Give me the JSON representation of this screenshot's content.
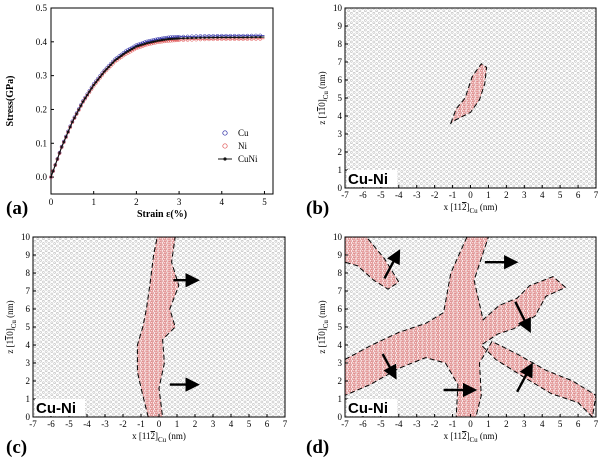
{
  "panels": [
    {
      "id": "a",
      "label": "(a)"
    },
    {
      "id": "b",
      "label": "(b)"
    },
    {
      "id": "c",
      "label": "(c)"
    },
    {
      "id": "d",
      "label": "(d)"
    }
  ],
  "material_label": "Cu-Ni",
  "chart_data": [
    {
      "type": "line",
      "panel": "(a)",
      "title": "",
      "xlabel": "Strain ε(%)",
      "ylabel": "Stress(GPa)",
      "xlim": [
        0,
        5.2
      ],
      "ylim": [
        -0.05,
        0.5
      ],
      "xticks": [
        "0",
        "1",
        "2",
        "3",
        "4",
        "5"
      ],
      "yticks": [
        "0.0",
        "0.1",
        "0.2",
        "0.3",
        "0.4",
        "0.5"
      ],
      "legend_position": "bottom-right",
      "x": [
        0,
        0.25,
        0.5,
        0.75,
        1.0,
        1.25,
        1.5,
        1.75,
        2.0,
        2.25,
        2.5,
        2.75,
        3.0,
        3.5,
        4.0,
        4.5,
        5.0
      ],
      "series": [
        {
          "name": "Cu",
          "marker": "circle",
          "color": "#2020a0",
          "values": [
            0,
            0.09,
            0.165,
            0.225,
            0.275,
            0.315,
            0.348,
            0.372,
            0.39,
            0.401,
            0.408,
            0.413,
            0.415,
            0.417,
            0.418,
            0.418,
            0.419
          ]
        },
        {
          "name": "Ni",
          "marker": "circle",
          "color": "#e05050",
          "values": [
            0,
            0.088,
            0.162,
            0.222,
            0.27,
            0.31,
            0.342,
            0.364,
            0.381,
            0.392,
            0.399,
            0.403,
            0.405,
            0.407,
            0.408,
            0.408,
            0.409
          ]
        },
        {
          "name": "CuNi",
          "marker": "filled-dot",
          "color": "#111111",
          "values": [
            0,
            0.089,
            0.163,
            0.223,
            0.272,
            0.312,
            0.345,
            0.368,
            0.386,
            0.396,
            0.403,
            0.408,
            0.41,
            0.412,
            0.413,
            0.413,
            0.414
          ]
        }
      ]
    },
    {
      "type": "scatter",
      "panel": "(b)",
      "xlabel_main": "x [11",
      "xlabel_bar": "2",
      "xlabel_sub": "Cu",
      "xlabel_unit": "(nm)",
      "ylabel_main": "z [1",
      "ylabel_bar": "1",
      "ylabel_tail": "0]",
      "ylabel_sub": "Cu",
      "ylabel_unit": "(nm)",
      "xlim": [
        -7,
        7
      ],
      "ylim": [
        0,
        10
      ],
      "xticks": [
        "-7",
        "-6",
        "-5",
        "-4",
        "-3",
        "-2",
        "-1",
        "0",
        "1",
        "2",
        "3",
        "4",
        "5",
        "6",
        "7"
      ],
      "yticks": [
        "0",
        "1",
        "2",
        "3",
        "4",
        "5",
        "6",
        "7",
        "8",
        "9",
        "10"
      ],
      "regions": [
        {
          "name": "dislocation-loop",
          "points": [
            [
              -1.1,
              3.6
            ],
            [
              -0.8,
              4.4
            ],
            [
              -0.3,
              5.0
            ],
            [
              0.1,
              6.2
            ],
            [
              0.6,
              6.9
            ],
            [
              0.9,
              6.7
            ],
            [
              0.8,
              5.8
            ],
            [
              0.5,
              4.9
            ],
            [
              0.0,
              4.2
            ],
            [
              -0.8,
              3.8
            ]
          ]
        }
      ],
      "arrows": []
    },
    {
      "type": "scatter",
      "panel": "(c)",
      "xlabel_main": "x [11",
      "xlabel_bar": "2",
      "xlabel_sub": "Cu",
      "xlabel_unit": "(nm)",
      "ylabel_main": "z [1",
      "ylabel_bar": "1",
      "ylabel_tail": "0]",
      "ylabel_sub": "Cu",
      "ylabel_unit": "(nm)",
      "xlim": [
        -7,
        7
      ],
      "ylim": [
        0,
        10
      ],
      "xticks": [
        "-7",
        "-6",
        "-5",
        "-4",
        "-3",
        "-2",
        "-1",
        "0",
        "1",
        "2",
        "3",
        "4",
        "5",
        "6",
        "7"
      ],
      "yticks": [
        "0",
        "1",
        "2",
        "3",
        "4",
        "5",
        "6",
        "7",
        "8",
        "9",
        "10"
      ],
      "regions": [
        {
          "name": "slip-band",
          "points": [
            [
              -0.6,
              0.0
            ],
            [
              -0.9,
              1.2
            ],
            [
              -1.2,
              2.5
            ],
            [
              -1.2,
              4.0
            ],
            [
              -0.9,
              5.0
            ],
            [
              -0.7,
              6.0
            ],
            [
              -0.5,
              7.4
            ],
            [
              -0.3,
              9.0
            ],
            [
              -0.1,
              10.0
            ],
            [
              0.9,
              10.0
            ],
            [
              0.7,
              8.6
            ],
            [
              1.1,
              7.3
            ],
            [
              0.6,
              6.0
            ],
            [
              0.9,
              5.0
            ],
            [
              0.2,
              4.3
            ],
            [
              0.3,
              3.0
            ],
            [
              0.0,
              1.6
            ],
            [
              0.2,
              0.0
            ]
          ]
        }
      ],
      "arrows": [
        {
          "from": [
            0.8,
            7.6
          ],
          "to": [
            1.9,
            7.6
          ]
        },
        {
          "from": [
            0.6,
            1.8
          ],
          "to": [
            1.9,
            1.8
          ]
        }
      ]
    },
    {
      "type": "scatter",
      "panel": "(d)",
      "xlabel_main": "x [11",
      "xlabel_bar": "2",
      "xlabel_sub": "Cu",
      "xlabel_unit": "(nm)",
      "ylabel_main": "z [1",
      "ylabel_bar": "1",
      "ylabel_tail": "0]",
      "ylabel_sub": "Cu",
      "ylabel_unit": "(nm)",
      "xlim": [
        -7,
        7
      ],
      "ylim": [
        0,
        10
      ],
      "xticks": [
        "-7",
        "-6",
        "-5",
        "-4",
        "-3",
        "-2",
        "-1",
        "0",
        "1",
        "2",
        "3",
        "4",
        "5",
        "6",
        "7"
      ],
      "yticks": [
        "0",
        "1",
        "2",
        "3",
        "4",
        "5",
        "6",
        "7",
        "8",
        "9",
        "10"
      ],
      "regions": [
        {
          "name": "band-upper-left",
          "points": [
            [
              -7.0,
              10.0
            ],
            [
              -5.8,
              10.0
            ],
            [
              -4.8,
              8.8
            ],
            [
              -4.0,
              7.5
            ],
            [
              -4.6,
              7.1
            ],
            [
              -5.4,
              7.6
            ],
            [
              -6.3,
              8.4
            ],
            [
              -7.0,
              8.6
            ]
          ]
        },
        {
          "name": "band-diagonal-main",
          "points": [
            [
              -7.0,
              3.2
            ],
            [
              -5.5,
              4.0
            ],
            [
              -4.0,
              4.7
            ],
            [
              -2.5,
              5.2
            ],
            [
              -1.5,
              5.8
            ],
            [
              -1.1,
              8.0
            ],
            [
              -0.2,
              10.0
            ],
            [
              1.0,
              10.0
            ],
            [
              0.2,
              7.6
            ],
            [
              0.7,
              5.4
            ],
            [
              1.6,
              6.2
            ],
            [
              2.6,
              6.6
            ],
            [
              3.3,
              7.3
            ],
            [
              4.6,
              7.8
            ],
            [
              5.3,
              7.2
            ],
            [
              4.2,
              6.7
            ],
            [
              3.6,
              5.6
            ],
            [
              2.4,
              4.9
            ],
            [
              1.5,
              4.6
            ],
            [
              0.6,
              4.0
            ],
            [
              1.4,
              3.2
            ],
            [
              3.0,
              2.2
            ],
            [
              4.5,
              1.3
            ],
            [
              6.0,
              0.8
            ],
            [
              6.8,
              0.0
            ],
            [
              7.0,
              1.2
            ],
            [
              5.7,
              2.0
            ],
            [
              4.2,
              2.6
            ],
            [
              2.6,
              3.5
            ],
            [
              1.2,
              4.2
            ],
            [
              0.5,
              3.0
            ],
            [
              0.6,
              1.2
            ],
            [
              0.3,
              0.0
            ],
            [
              -0.8,
              0.0
            ],
            [
              -0.7,
              1.8
            ],
            [
              -1.4,
              3.0
            ],
            [
              -2.5,
              3.3
            ],
            [
              -4.0,
              2.7
            ],
            [
              -5.6,
              1.8
            ],
            [
              -7.0,
              1.2
            ]
          ]
        }
      ],
      "arrows": [
        {
          "from": [
            0.8,
            8.6
          ],
          "to": [
            2.3,
            8.6
          ]
        },
        {
          "from": [
            -4.8,
            7.7
          ],
          "to": [
            -4.1,
            9.0
          ]
        },
        {
          "from": [
            -4.9,
            3.5
          ],
          "to": [
            -4.3,
            2.4
          ]
        },
        {
          "from": [
            2.5,
            6.4
          ],
          "to": [
            3.2,
            5.0
          ]
        },
        {
          "from": [
            -1.5,
            1.5
          ],
          "to": [
            0.0,
            1.5
          ]
        },
        {
          "from": [
            2.6,
            1.4
          ],
          "to": [
            3.3,
            2.7
          ]
        }
      ]
    }
  ]
}
